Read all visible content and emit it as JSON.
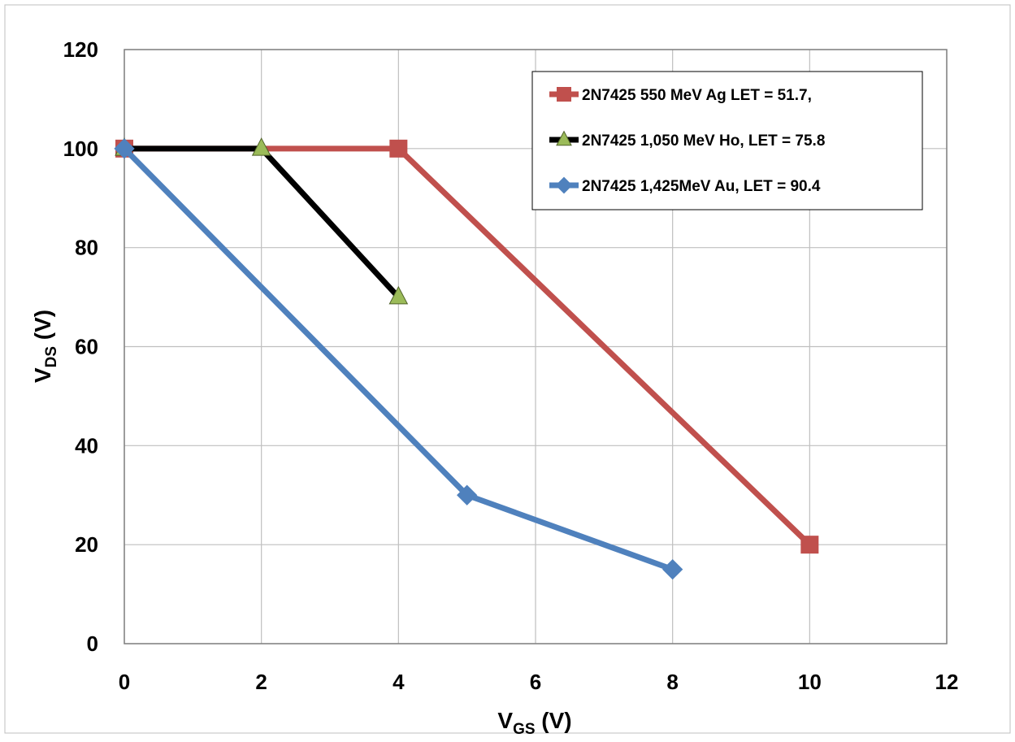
{
  "chart_data": {
    "type": "line",
    "xlabel": {
      "main": "V",
      "sub": "GS",
      "unit": " (V)"
    },
    "ylabel": {
      "main": "V",
      "sub": "DS",
      "unit": " (V)"
    },
    "xlim": [
      0,
      12
    ],
    "ylim": [
      0,
      120
    ],
    "x_ticks": [
      0,
      2,
      4,
      6,
      8,
      10,
      12
    ],
    "y_ticks": [
      0,
      20,
      40,
      60,
      80,
      100,
      120
    ],
    "grid": true,
    "legend_position": "top-right",
    "series": [
      {
        "name": "2N7425 550 MeV Ag  LET = 51.7,",
        "color": "#c0504d",
        "marker": "square",
        "points": [
          [
            0,
            100
          ],
          [
            4,
            100
          ],
          [
            10,
            20
          ]
        ]
      },
      {
        "name": "2N7425 1,050 MeV Ho, LET = 75.8",
        "color": "#000000",
        "marker": "triangle",
        "marker_color": "#9bbb59",
        "points": [
          [
            0,
            100
          ],
          [
            2,
            100
          ],
          [
            4,
            70
          ]
        ]
      },
      {
        "name": "2N7425 1,425MeV Au, LET = 90.4",
        "color": "#4f81bd",
        "marker": "diamond",
        "points": [
          [
            0,
            100
          ],
          [
            5,
            30
          ],
          [
            8,
            15
          ]
        ]
      }
    ]
  }
}
